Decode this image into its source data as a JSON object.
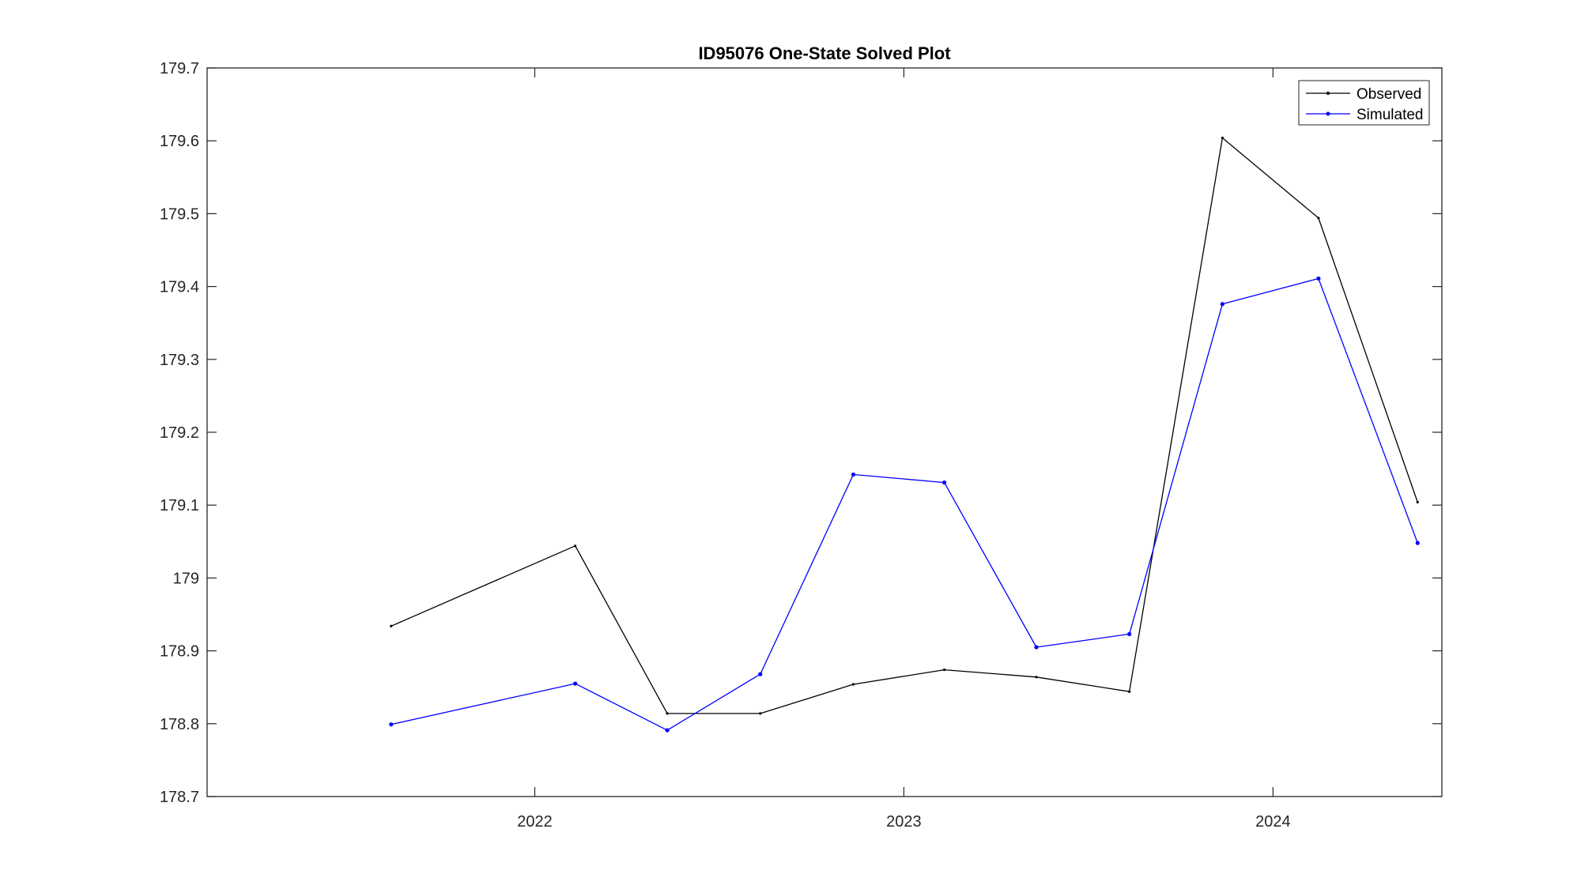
{
  "chart_data": {
    "type": "line",
    "title": "ID95076 One-State Solved Plot",
    "xlabel": "",
    "ylabel": "",
    "x_axis": {
      "type": "date",
      "range": [
        "2021-02-11",
        "2024-06-16"
      ],
      "ticks": [
        "2022-01-01",
        "2023-01-01",
        "2024-01-01"
      ],
      "tick_labels": [
        "2022",
        "2023",
        "2024"
      ]
    },
    "ylim": [
      178.7,
      179.7
    ],
    "y_ticks": [
      178.7,
      178.8,
      178.9,
      179,
      179.1,
      179.2,
      179.3,
      179.4,
      179.5,
      179.6,
      179.7
    ],
    "y_tick_labels": [
      "178.7",
      "178.8",
      "178.9",
      "179",
      "179.1",
      "179.2",
      "179.3",
      "179.4",
      "179.5",
      "179.6",
      "179.7"
    ],
    "grid": false,
    "legend_position": "top-right",
    "series": [
      {
        "name": "Observed",
        "color": "#000000",
        "marker": "point",
        "x": [
          "2021-08-12",
          "2022-02-10",
          "2022-05-12",
          "2022-08-12",
          "2022-11-12",
          "2023-02-10",
          "2023-05-12",
          "2023-08-12",
          "2023-11-12",
          "2024-02-15",
          "2024-05-23"
        ],
        "y": [
          178.934,
          179.044,
          178.814,
          178.814,
          178.854,
          178.874,
          178.864,
          178.844,
          179.604,
          179.494,
          179.104
        ]
      },
      {
        "name": "Simulated",
        "color": "#0000ff",
        "marker": "point",
        "x": [
          "2021-08-12",
          "2022-02-10",
          "2022-05-12",
          "2022-08-12",
          "2022-11-12",
          "2023-02-10",
          "2023-05-12",
          "2023-08-12",
          "2023-11-12",
          "2024-02-15",
          "2024-05-23"
        ],
        "y": [
          178.799,
          178.855,
          178.791,
          178.868,
          179.142,
          179.131,
          178.905,
          178.923,
          179.376,
          179.411,
          179.048
        ]
      }
    ]
  }
}
